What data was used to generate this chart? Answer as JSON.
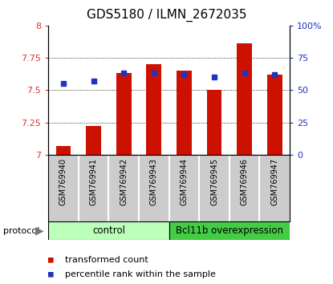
{
  "title": "GDS5180 / ILMN_2672035",
  "samples": [
    "GSM769940",
    "GSM769941",
    "GSM769942",
    "GSM769943",
    "GSM769944",
    "GSM769945",
    "GSM769946",
    "GSM769947"
  ],
  "transformed_count": [
    7.07,
    7.22,
    7.63,
    7.7,
    7.65,
    7.5,
    7.86,
    7.62
  ],
  "percentile_rank": [
    55,
    57,
    63,
    63,
    62,
    60,
    63,
    62
  ],
  "ylim_left": [
    7.0,
    8.0
  ],
  "ylim_right": [
    0,
    100
  ],
  "yticks_left": [
    7.0,
    7.25,
    7.5,
    7.75,
    8.0
  ],
  "yticks_right": [
    0,
    25,
    50,
    75,
    100
  ],
  "ytick_labels_left": [
    "7",
    "7.25",
    "7.5",
    "7.75",
    "8"
  ],
  "ytick_labels_right": [
    "0",
    "25",
    "50",
    "75",
    "100%"
  ],
  "bar_color": "#cc1100",
  "dot_color": "#2233bb",
  "group_control_label": "control",
  "group_over_label": "Bcl11b overexpression",
  "group_control_color": "#bbffbb",
  "group_over_color": "#44cc44",
  "protocol_label": "protocol",
  "legend_bar_label": "transformed count",
  "legend_dot_label": "percentile rank within the sample",
  "xlabel_bg_color": "#cccccc",
  "tick_label_color_left": "#dd3333",
  "tick_label_color_right": "#2233bb",
  "bar_width": 0.5,
  "title_fontsize": 11,
  "tick_fontsize": 8,
  "sample_fontsize": 7,
  "legend_fontsize": 8
}
